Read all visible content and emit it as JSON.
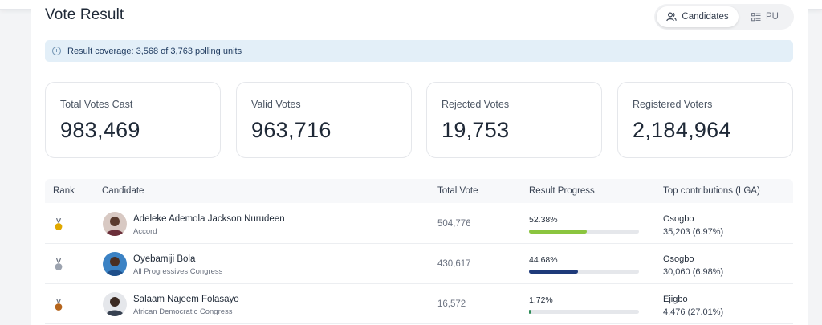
{
  "page": {
    "title": "Vote Result",
    "toggle": {
      "candidates_label": "Candidates",
      "pu_label": "PU",
      "active": "Candidates"
    },
    "coverage_text": "Result coverage: 3,568 of 3,763 polling units"
  },
  "stats": [
    {
      "label": "Total Votes Cast",
      "value": "983,469"
    },
    {
      "label": "Valid Votes",
      "value": "963,716"
    },
    {
      "label": "Rejected Votes",
      "value": "19,753"
    },
    {
      "label": "Registered Voters",
      "value": "2,184,964"
    }
  ],
  "table": {
    "headers": {
      "rank": "Rank",
      "candidate": "Candidate",
      "total_vote": "Total Vote",
      "progress": "Result Progress",
      "top_lga": "Top contributions (LGA)"
    },
    "rows": [
      {
        "rank_icon": "gold-medal-icon",
        "medal_color": "#e0a800",
        "name": "Adeleke Ademola Jackson Nurudeen",
        "party": "Accord",
        "votes": "504,776",
        "percent": "52.38%",
        "progress": 0.5238,
        "bar_color": "#8bc53f",
        "lga": "Osogbo",
        "lga_votes": "35,203 (6.97%)"
      },
      {
        "rank_icon": "silver-medal-icon",
        "medal_color": "#9ca3af",
        "name": "Oyebamiji Bola",
        "party": "All Progressives Congress",
        "votes": "430,617",
        "percent": "44.68%",
        "progress": 0.4468,
        "bar_color": "#1e3a7a",
        "lga": "Osogbo",
        "lga_votes": "30,060 (6.98%)"
      },
      {
        "rank_icon": "bronze-medal-icon",
        "medal_color": "#b5651d",
        "name": "Salaam Najeem Folasayo",
        "party": "African Democratic Congress",
        "votes": "16,572",
        "percent": "1.72%",
        "progress": 0.0172,
        "bar_color": "#2e8b57",
        "lga": "Ejigbo",
        "lga_votes": "4,476 (27.01%)"
      }
    ]
  }
}
